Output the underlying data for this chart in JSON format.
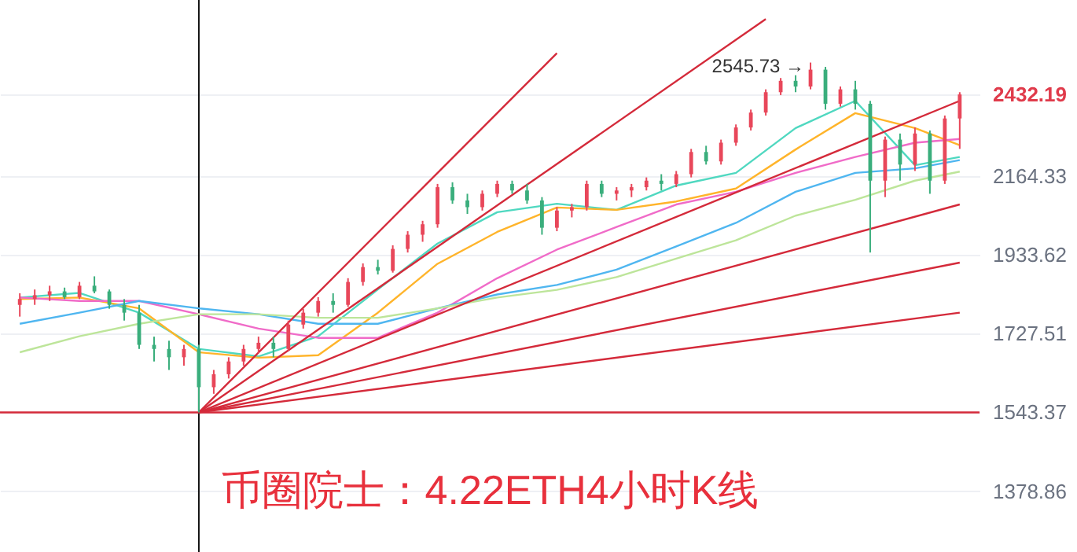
{
  "chart_data": {
    "type": "candlestick",
    "title": "币圈院士：4.22ETH4小时K线",
    "categories": [
      null,
      null,
      null,
      null,
      null,
      null,
      null,
      null,
      null,
      null,
      null,
      null,
      null,
      null,
      null,
      null,
      null,
      null,
      null,
      null,
      null,
      null,
      null,
      null,
      null,
      null,
      null,
      null,
      null,
      null,
      null,
      null,
      null,
      null,
      null,
      null,
      null,
      null,
      null,
      null,
      null,
      null,
      null,
      null,
      null,
      null,
      null,
      null,
      null,
      null,
      null,
      null,
      null,
      null,
      null,
      null,
      null,
      null,
      null,
      null,
      null,
      null,
      null,
      null
    ],
    "ohlc": [
      [
        1800,
        1830,
        1770,
        1815
      ],
      [
        1815,
        1840,
        1800,
        1825
      ],
      [
        1825,
        1850,
        1810,
        1835
      ],
      [
        1835,
        1845,
        1815,
        1820
      ],
      [
        1820,
        1860,
        1815,
        1850
      ],
      [
        1850,
        1875,
        1830,
        1835
      ],
      [
        1835,
        1840,
        1790,
        1800
      ],
      [
        1800,
        1815,
        1760,
        1780
      ],
      [
        1780,
        1800,
        1690,
        1700
      ],
      [
        1700,
        1720,
        1660,
        1690
      ],
      [
        1690,
        1710,
        1640,
        1670
      ],
      [
        1670,
        1700,
        1650,
        1690
      ],
      [
        1690,
        1700,
        1543.37,
        1600
      ],
      [
        1600,
        1640,
        1585,
        1630
      ],
      [
        1630,
        1670,
        1620,
        1660
      ],
      [
        1660,
        1700,
        1650,
        1690
      ],
      [
        1690,
        1720,
        1680,
        1705
      ],
      [
        1705,
        1720,
        1670,
        1690
      ],
      [
        1690,
        1760,
        1685,
        1750
      ],
      [
        1750,
        1790,
        1740,
        1780
      ],
      [
        1780,
        1820,
        1770,
        1810
      ],
      [
        1810,
        1830,
        1780,
        1800
      ],
      [
        1800,
        1870,
        1795,
        1860
      ],
      [
        1860,
        1910,
        1850,
        1900
      ],
      [
        1900,
        1920,
        1880,
        1890
      ],
      [
        1890,
        1960,
        1885,
        1950
      ],
      [
        1950,
        2000,
        1940,
        1990
      ],
      [
        1990,
        2030,
        1970,
        2020
      ],
      [
        2020,
        2140,
        2010,
        2130
      ],
      [
        2130,
        2145,
        2080,
        2090
      ],
      [
        2090,
        2110,
        2050,
        2070
      ],
      [
        2070,
        2120,
        2060,
        2110
      ],
      [
        2110,
        2150,
        2100,
        2140
      ],
      [
        2140,
        2150,
        2110,
        2120
      ],
      [
        2120,
        2140,
        2080,
        2090
      ],
      [
        2090,
        2100,
        1990,
        2010
      ],
      [
        2010,
        2070,
        2000,
        2060
      ],
      [
        2060,
        2080,
        2040,
        2070
      ],
      [
        2070,
        2150,
        2060,
        2140
      ],
      [
        2140,
        2150,
        2100,
        2110
      ],
      [
        2110,
        2130,
        2090,
        2120
      ],
      [
        2120,
        2140,
        2100,
        2130
      ],
      [
        2130,
        2160,
        2120,
        2150
      ],
      [
        2150,
        2170,
        2120,
        2140
      ],
      [
        2140,
        2180,
        2130,
        2170
      ],
      [
        2170,
        2250,
        2160,
        2240
      ],
      [
        2240,
        2260,
        2200,
        2210
      ],
      [
        2210,
        2280,
        2200,
        2270
      ],
      [
        2270,
        2330,
        2260,
        2320
      ],
      [
        2320,
        2380,
        2310,
        2370
      ],
      [
        2370,
        2450,
        2360,
        2440
      ],
      [
        2440,
        2490,
        2430,
        2480
      ],
      [
        2480,
        2500,
        2440,
        2460
      ],
      [
        2460,
        2545.73,
        2450,
        2520
      ],
      [
        2520,
        2530,
        2380,
        2400
      ],
      [
        2400,
        2460,
        2390,
        2450
      ],
      [
        2450,
        2480,
        2380,
        2400
      ],
      [
        2400,
        2410,
        1940,
        2150
      ],
      [
        2150,
        2290,
        2100,
        2280
      ],
      [
        2280,
        2300,
        2150,
        2200
      ],
      [
        2200,
        2320,
        2180,
        2300
      ],
      [
        2300,
        2310,
        2110,
        2150
      ],
      [
        2150,
        2360,
        2140,
        2350
      ],
      [
        2350,
        2440,
        2250,
        2432.19
      ]
    ],
    "series": [
      {
        "type": "line",
        "color": "#4fd8c0",
        "values": [
          1819,
          null,
          null,
          null,
          1831,
          null,
          null,
          null,
          1780,
          null,
          null,
          null,
          1690,
          null,
          null,
          null,
          1672,
          null,
          null,
          null,
          1721,
          null,
          null,
          null,
          1840,
          null,
          null,
          null,
          1965,
          null,
          null,
          null,
          2055,
          null,
          null,
          null,
          2080,
          null,
          null,
          null,
          2062,
          null,
          null,
          null,
          2135,
          null,
          null,
          null,
          2174,
          null,
          null,
          null,
          2318,
          null,
          null,
          null,
          2410,
          null,
          null,
          null,
          2198,
          null,
          null,
          2224
        ]
      },
      {
        "type": "line",
        "color": "#ffb42a",
        "values": [
          1815,
          null,
          null,
          null,
          1819,
          null,
          null,
          null,
          1791,
          null,
          null,
          null,
          1682,
          null,
          null,
          null,
          1669,
          null,
          null,
          null,
          1675,
          null,
          null,
          null,
          1780,
          null,
          null,
          null,
          1909,
          null,
          null,
          null,
          1998,
          null,
          null,
          null,
          2069,
          null,
          null,
          null,
          2062,
          null,
          null,
          null,
          2087,
          null,
          null,
          null,
          2126,
          null,
          null,
          null,
          2248,
          null,
          null,
          null,
          2368,
          null,
          null,
          null,
          2318,
          null,
          null,
          2262
        ]
      },
      {
        "type": "line",
        "color": "#f06bc8",
        "values": [
          1819,
          null,
          null,
          null,
          1810,
          null,
          null,
          null,
          1810,
          null,
          null,
          null,
          1776,
          null,
          null,
          null,
          1740,
          null,
          null,
          null,
          1717,
          null,
          null,
          null,
          1717,
          null,
          null,
          null,
          1780,
          null,
          null,
          null,
          1870,
          null,
          null,
          null,
          1948,
          null,
          null,
          null,
          2012,
          null,
          null,
          null,
          2078,
          null,
          null,
          null,
          2116,
          null,
          null,
          null,
          2174,
          null,
          null,
          null,
          2224,
          null,
          null,
          null,
          2270,
          null,
          null,
          2282
        ]
      },
      {
        "type": "line",
        "color": "#4fb6f0",
        "values": [
          1752,
          null,
          null,
          null,
          1780,
          null,
          null,
          null,
          1810,
          null,
          null,
          null,
          1791,
          null,
          null,
          null,
          1776,
          null,
          null,
          null,
          1752,
          null,
          null,
          null,
          1752,
          null,
          null,
          null,
          1791,
          null,
          null,
          null,
          1827,
          null,
          null,
          null,
          1852,
          null,
          null,
          null,
          1893,
          null,
          null,
          null,
          1957,
          null,
          null,
          null,
          2024,
          null,
          null,
          null,
          2116,
          null,
          null,
          null,
          2174,
          null,
          null,
          null,
          2188,
          null,
          null,
          2214
        ]
      },
      {
        "type": "line",
        "color": "#bde59a",
        "values": [
          1682,
          null,
          null,
          null,
          1721,
          null,
          null,
          null,
          1752,
          null,
          null,
          null,
          1776,
          null,
          null,
          null,
          1776,
          null,
          null,
          null,
          1767,
          null,
          null,
          null,
          1767,
          null,
          null,
          null,
          1791,
          null,
          null,
          null,
          1819,
          null,
          null,
          null,
          1839,
          null,
          null,
          null,
          1873,
          null,
          null,
          null,
          1923,
          null,
          null,
          null,
          1974,
          null,
          null,
          null,
          2045,
          null,
          null,
          null,
          2092,
          null,
          null,
          null,
          2150,
          null,
          null,
          2178
        ]
      },
      {
        "type": "line",
        "color": "#d42a3a",
        "values": [
          null,
          null,
          null,
          null,
          null,
          null,
          null,
          null,
          null,
          null,
          null,
          null,
          1543.37,
          null,
          null,
          null,
          null,
          null,
          null,
          null,
          null,
          null,
          null,
          null,
          null,
          null,
          null,
          null,
          null,
          null,
          null,
          null,
          null,
          null,
          null,
          null,
          2580,
          null,
          null,
          null,
          null,
          null,
          null,
          null,
          null,
          null,
          null,
          null,
          null,
          null,
          null,
          null,
          null,
          null,
          null,
          null,
          null,
          null,
          null,
          null,
          null,
          null,
          null,
          null
        ]
      },
      {
        "type": "line",
        "color": "#d42a3a",
        "values": [
          null,
          null,
          null,
          null,
          null,
          null,
          null,
          null,
          null,
          null,
          null,
          null,
          1543.37,
          null,
          null,
          null,
          null,
          null,
          null,
          null,
          null,
          null,
          null,
          null,
          null,
          null,
          null,
          null,
          null,
          null,
          null,
          null,
          null,
          null,
          null,
          null,
          null,
          null,
          null,
          null,
          null,
          null,
          null,
          null,
          null,
          null,
          null,
          null,
          null,
          null,
          2709,
          null,
          null,
          null,
          null,
          null,
          null,
          null,
          null,
          null,
          null,
          null,
          null,
          null
        ]
      },
      {
        "type": "line",
        "color": "#d42a3a",
        "values": [
          null,
          null,
          null,
          null,
          null,
          null,
          null,
          null,
          null,
          null,
          null,
          null,
          1543.37,
          null,
          null,
          null,
          null,
          null,
          null,
          null,
          null,
          null,
          null,
          null,
          null,
          null,
          null,
          null,
          null,
          null,
          null,
          null,
          null,
          null,
          null,
          null,
          null,
          null,
          null,
          null,
          null,
          null,
          null,
          null,
          null,
          null,
          null,
          null,
          null,
          null,
          null,
          null,
          null,
          null,
          null,
          null,
          null,
          null,
          null,
          null,
          null,
          null,
          null,
          2410
        ]
      },
      {
        "type": "line",
        "color": "#d42a3a",
        "values": [
          null,
          null,
          null,
          null,
          null,
          null,
          null,
          null,
          null,
          null,
          null,
          null,
          1543.37,
          null,
          null,
          null,
          null,
          null,
          null,
          null,
          null,
          null,
          null,
          null,
          null,
          null,
          null,
          null,
          null,
          null,
          null,
          null,
          null,
          null,
          null,
          null,
          null,
          null,
          null,
          null,
          null,
          null,
          null,
          null,
          null,
          null,
          null,
          null,
          null,
          null,
          null,
          null,
          null,
          null,
          null,
          null,
          null,
          null,
          null,
          null,
          null,
          null,
          null,
          2078
        ]
      },
      {
        "type": "line",
        "color": "#d42a3a",
        "values": [
          null,
          null,
          null,
          null,
          null,
          null,
          null,
          null,
          null,
          null,
          null,
          null,
          1543.37,
          null,
          null,
          null,
          null,
          null,
          null,
          null,
          null,
          null,
          null,
          null,
          null,
          null,
          null,
          null,
          null,
          null,
          null,
          null,
          null,
          null,
          null,
          null,
          null,
          null,
          null,
          null,
          null,
          null,
          null,
          null,
          null,
          null,
          null,
          null,
          null,
          null,
          null,
          null,
          null,
          null,
          null,
          null,
          null,
          null,
          null,
          null,
          null,
          null,
          null,
          1912
        ]
      },
      {
        "type": "line",
        "color": "#d42a3a",
        "values": [
          null,
          null,
          null,
          null,
          null,
          null,
          null,
          null,
          null,
          null,
          null,
          null,
          1543.37,
          null,
          null,
          null,
          null,
          null,
          null,
          null,
          null,
          null,
          null,
          null,
          null,
          null,
          null,
          null,
          null,
          null,
          null,
          null,
          null,
          null,
          null,
          null,
          null,
          null,
          null,
          null,
          null,
          null,
          null,
          null,
          null,
          null,
          null,
          null,
          null,
          null,
          null,
          null,
          null,
          null,
          null,
          null,
          null,
          null,
          null,
          null,
          null,
          null,
          null,
          1780
        ]
      }
    ],
    "log": true,
    "ylim": [
      1264,
      2784
    ],
    "yticks": [
      1378.86,
      1543.37,
      1727.51,
      1933.62,
      2164.33,
      2432.19
    ],
    "grid": "y",
    "ref_lines": [
      {
        "axis": "y",
        "value": 1543.37,
        "color": "#d42a3a"
      }
    ],
    "annotations": [
      "2545.73 →"
    ]
  }
}
